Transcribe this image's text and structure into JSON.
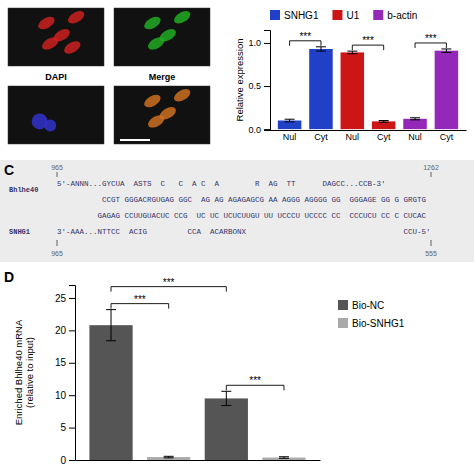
{
  "chart_data": [
    {
      "type": "image",
      "colors": [
        "#cc2020",
        "#22aa22",
        "#3333cc",
        "#cc7020"
      ],
      "annotations": [
        "DAPI",
        "Merge"
      ]
    },
    {
      "type": "bar",
      "categories": [
        "Nul",
        "Cyt",
        "Nul",
        "Cyt",
        "Nul",
        "Cyt"
      ],
      "series": [
        {
          "name": "SNHG1",
          "color": "#2040c8",
          "values": [
            0.1,
            0.93,
            null,
            null,
            null,
            null
          ],
          "errors": [
            0.015,
            0.025,
            null,
            null,
            null,
            null
          ]
        },
        {
          "name": "U1",
          "color": "#cc1515",
          "values": [
            null,
            null,
            0.89,
            0.09,
            null,
            null
          ],
          "errors": [
            null,
            null,
            0.015,
            0.01,
            null,
            null
          ]
        },
        {
          "name": "b-actin",
          "color": "#9428b8",
          "values": [
            null,
            null,
            null,
            null,
            0.12,
            0.91
          ],
          "errors": [
            null,
            null,
            null,
            null,
            0.012,
            0.02
          ]
        }
      ],
      "ylabel": "Relative expression",
      "ylim": [
        -0.01,
        1.15
      ],
      "yticks": [
        {
          "value": 0.0,
          "label": "0.0"
        },
        0.5,
        {
          "value": 1.0,
          "label": "1.0"
        }
      ],
      "annotations": [
        {
          "text": "***",
          "between": [
            0,
            1
          ]
        },
        {
          "text": "***",
          "between": [
            2,
            3
          ]
        },
        {
          "text": "***",
          "between": [
            4,
            5
          ]
        }
      ],
      "legend": "top"
    },
    {
      "type": "alignment",
      "title": "C",
      "annotations": [
        "Bhlhe40",
        "SNHG1",
        "965",
        "1262",
        "965",
        "555",
        "5'-ANNN...GYCUA  ASTS  C   C  A C  A        R  AG  TT      DAGCC...CCB-3'",
        "          CCGT GGGACRGUGAG GGC  AG AG AGAGAGCG AA AGGG AGGGG GG  GGGAGE GG G GRGTG",
        "         GAGAG CCUUGUACUC CCG  UC UC UCUCUUGU UU UCCCU UCCCC CC  CCCUCU CC C CUCAC",
        "3'-AAA...NTTCC  ACIG         CCA  ACARBONX                                   CCU-5'"
      ]
    },
    {
      "type": "bar",
      "title": "D",
      "categories": [
        null,
        null,
        null,
        null
      ],
      "series": [
        {
          "name": "Bio-NC",
          "color": "#555555",
          "values": [
            20.8,
            null,
            9.5,
            null
          ],
          "errors": [
            2.4,
            null,
            1.1,
            null
          ]
        },
        {
          "name": "Bio-SNHG1",
          "color": "#aaaaaa",
          "values": [
            null,
            0.45,
            null,
            0.38
          ],
          "errors": [
            null,
            0.12,
            null,
            0.12
          ]
        }
      ],
      "ylabel": "Enriched Bhlhe40 mRNA\n(relative to input)",
      "ylim": [
        0,
        27
      ],
      "yticks": [
        0,
        5,
        10,
        15,
        20,
        25
      ],
      "tick_labels": "y",
      "annotations": [
        {
          "text": "***",
          "between": [
            0,
            1
          ]
        },
        {
          "text": "***",
          "between": [
            2,
            3
          ]
        },
        {
          "text": "***",
          "between": [
            0,
            2
          ]
        }
      ],
      "legend": "right"
    }
  ]
}
